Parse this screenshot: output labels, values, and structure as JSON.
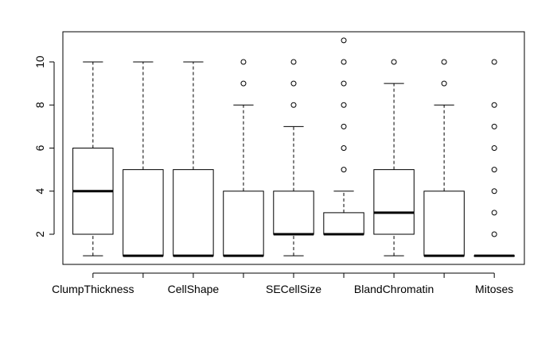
{
  "chart_data": {
    "type": "boxplot",
    "title": "",
    "xlabel": "",
    "ylabel": "",
    "ylim": [
      0.6,
      11.4
    ],
    "y_ticks": [
      2,
      4,
      6,
      8,
      10
    ],
    "x_tick_labels_shown": [
      "ClumpThickness",
      "CellShape",
      "SECellSize",
      "BlandChromatin",
      "Mitoses"
    ],
    "boxes": [
      {
        "name": "ClumpThickness",
        "label_shown": true,
        "min": 1,
        "q1": 2,
        "median": 4,
        "q3": 6,
        "max": 10,
        "outliers": []
      },
      {
        "name": "",
        "label_shown": false,
        "min": 1,
        "q1": 1,
        "median": 1,
        "q3": 5,
        "max": 10,
        "outliers": []
      },
      {
        "name": "CellShape",
        "label_shown": true,
        "min": 1,
        "q1": 1,
        "median": 1,
        "q3": 5,
        "max": 10,
        "outliers": []
      },
      {
        "name": "",
        "label_shown": false,
        "min": 1,
        "q1": 1,
        "median": 1,
        "q3": 4,
        "max": 8,
        "outliers": [
          9,
          10
        ]
      },
      {
        "name": "SECellSize",
        "label_shown": true,
        "min": 1,
        "q1": 2,
        "median": 2,
        "q3": 4,
        "max": 7,
        "outliers": [
          8,
          9,
          10
        ]
      },
      {
        "name": "",
        "label_shown": false,
        "min": 2,
        "q1": 2,
        "median": 2,
        "q3": 3,
        "max": 4,
        "outliers": [
          5,
          6,
          7,
          8,
          9,
          10,
          11
        ]
      },
      {
        "name": "BlandChromatin",
        "label_shown": true,
        "min": 1,
        "q1": 2,
        "median": 3,
        "q3": 5,
        "max": 9,
        "outliers": [
          10
        ]
      },
      {
        "name": "",
        "label_shown": false,
        "min": 1,
        "q1": 1,
        "median": 1,
        "q3": 4,
        "max": 8,
        "outliers": [
          9,
          10
        ]
      },
      {
        "name": "Mitoses",
        "label_shown": true,
        "min": 1,
        "q1": 1,
        "median": 1,
        "q3": 1,
        "max": 1,
        "outliers": [
          2,
          3,
          4,
          5,
          6,
          7,
          8,
          10
        ]
      }
    ]
  }
}
